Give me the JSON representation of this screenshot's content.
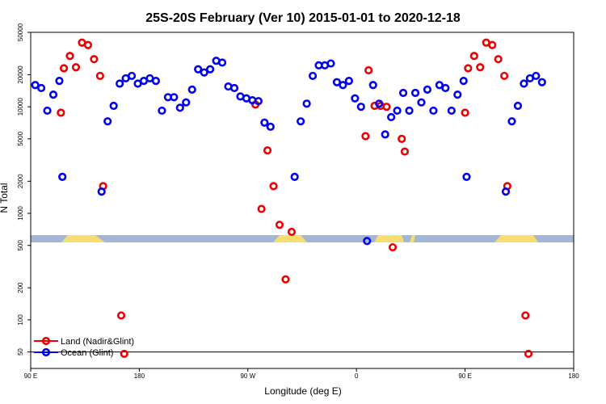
{
  "chart_data": {
    "type": "scatter",
    "title": "25S-20S February (Ver 10)   2015-01-01 to 2020-12-18",
    "xlabel": "Longitude (deg E)",
    "ylabel": "N Total",
    "y_scale": "log",
    "ylim": [
      35,
      50000
    ],
    "xlim": [
      90,
      450
    ],
    "x_ticks": [
      {
        "value": 90,
        "label": "90 E"
      },
      {
        "value": 162,
        "label": "180"
      },
      {
        "value": 234,
        "label": "90 W"
      },
      {
        "value": 306,
        "label": "0"
      },
      {
        "value": 378,
        "label": "90 E"
      },
      {
        "value": 450,
        "label": "180"
      }
    ],
    "y_ticks": [
      50,
      100,
      200,
      500,
      1000,
      2000,
      5000,
      10000,
      20000,
      50000
    ],
    "reference_line_y": 50,
    "series": [
      {
        "name": "Land (Nadir&Glint)",
        "color": "#ee0000",
        "points": [
          [
            110,
            8800
          ],
          [
            112,
            23000
          ],
          [
            116,
            30000
          ],
          [
            120,
            23500
          ],
          [
            124,
            40000
          ],
          [
            128,
            38000
          ],
          [
            132,
            28000
          ],
          [
            136,
            19500
          ],
          [
            138,
            1800
          ],
          [
            150,
            110
          ],
          [
            152,
            48
          ],
          [
            239,
            10500
          ],
          [
            243,
            1100
          ],
          [
            247,
            3900
          ],
          [
            251,
            1800
          ],
          [
            255,
            780
          ],
          [
            259,
            240
          ],
          [
            263,
            670
          ],
          [
            312,
            5300
          ],
          [
            314,
            22000
          ],
          [
            318,
            10200
          ],
          [
            322,
            10200
          ],
          [
            326,
            10000
          ],
          [
            330,
            480
          ],
          [
            336,
            5000
          ],
          [
            338,
            3800
          ],
          [
            378,
            8800
          ],
          [
            380,
            23000
          ],
          [
            384,
            30000
          ],
          [
            388,
            23500
          ],
          [
            392,
            40000
          ],
          [
            396,
            38000
          ],
          [
            400,
            28000
          ],
          [
            404,
            19500
          ],
          [
            406,
            1800
          ],
          [
            418,
            110
          ],
          [
            420,
            48
          ]
        ]
      },
      {
        "name": "Ocean (Glint)",
        "color": "#0000ee",
        "points": [
          [
            93,
            16000
          ],
          [
            97,
            15000
          ],
          [
            101,
            9200
          ],
          [
            105,
            13000
          ],
          [
            109,
            17500
          ],
          [
            111,
            2200
          ],
          [
            137,
            1600
          ],
          [
            141,
            7300
          ],
          [
            145,
            10200
          ],
          [
            149,
            16500
          ],
          [
            153,
            18500
          ],
          [
            157,
            19500
          ],
          [
            161,
            16500
          ],
          [
            165,
            17500
          ],
          [
            169,
            18500
          ],
          [
            173,
            17500
          ],
          [
            177,
            9200
          ],
          [
            181,
            12300
          ],
          [
            185,
            12300
          ],
          [
            189,
            9800
          ],
          [
            193,
            11000
          ],
          [
            197,
            14500
          ],
          [
            201,
            22500
          ],
          [
            205,
            21000
          ],
          [
            209,
            22500
          ],
          [
            213,
            27000
          ],
          [
            217,
            26000
          ],
          [
            221,
            15500
          ],
          [
            225,
            15000
          ],
          [
            229,
            12500
          ],
          [
            233,
            12000
          ],
          [
            237,
            11500
          ],
          [
            241,
            11300
          ],
          [
            245,
            7100
          ],
          [
            249,
            6500
          ],
          [
            265,
            2200
          ],
          [
            269,
            7300
          ],
          [
            273,
            10700
          ],
          [
            277,
            19500
          ],
          [
            281,
            24500
          ],
          [
            285,
            24500
          ],
          [
            289,
            25500
          ],
          [
            293,
            17000
          ],
          [
            297,
            16000
          ],
          [
            301,
            17500
          ],
          [
            305,
            12000
          ],
          [
            309,
            10000
          ],
          [
            313,
            550
          ],
          [
            317,
            16000
          ],
          [
            321,
            10700
          ],
          [
            325,
            5500
          ],
          [
            329,
            8000
          ],
          [
            333,
            9200
          ],
          [
            337,
            13500
          ],
          [
            341,
            9200
          ],
          [
            345,
            13500
          ],
          [
            349,
            11000
          ],
          [
            353,
            14500
          ],
          [
            357,
            9200
          ],
          [
            361,
            16000
          ],
          [
            365,
            15000
          ],
          [
            369,
            9200
          ],
          [
            373,
            13000
          ],
          [
            377,
            17500
          ],
          [
            379,
            2200
          ],
          [
            405,
            1600
          ],
          [
            409,
            7300
          ],
          [
            413,
            10200
          ],
          [
            417,
            16500
          ],
          [
            421,
            18500
          ],
          [
            425,
            19500
          ],
          [
            429,
            17000
          ]
        ]
      }
    ]
  }
}
